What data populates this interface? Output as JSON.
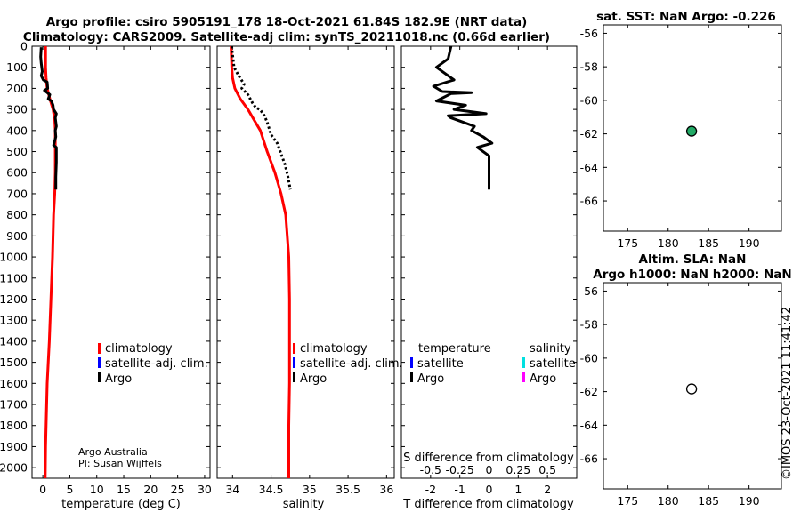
{
  "header": {
    "line1": "Argo profile: csiro 5905191_178 18-Oct-2021 61.84S 182.9E (NRT data)",
    "line2": "Climatology: CARS2009. Satellite-adj clim: synTS_20211018.nc (0.66d earlier)"
  },
  "depth_ticks": [
    "0",
    "100",
    "200",
    "300",
    "400",
    "500",
    "600",
    "700",
    "800",
    "900",
    "1000",
    "1100",
    "1200",
    "1300",
    "1400",
    "1500",
    "1600",
    "1700",
    "1800",
    "1900",
    "2000"
  ],
  "colors": {
    "climatology": "#ff0000",
    "satellite": "#0000ff",
    "argo": "#000000",
    "sat_salinity": "#00e0e0",
    "argo_salinity": "#ff00ff",
    "marker_fill": "#22aa66",
    "zero_line": "#555555"
  },
  "chart_data": [
    {
      "type": "line",
      "id": "temperature",
      "xlabel": "temperature (deg C)",
      "ylabel": "depth",
      "xlim": [
        -2,
        31
      ],
      "ylim": [
        2050,
        0
      ],
      "xticks": [
        0,
        5,
        10,
        15,
        20,
        25,
        30
      ],
      "xtick_labels": [
        "0",
        "5",
        "10",
        "15",
        "20",
        "25",
        "30"
      ],
      "legend": [
        "climatology",
        "satellite-adj. clim.",
        "Argo"
      ],
      "footer_text": [
        "Argo Australia",
        "PI: Susan Wijffels"
      ],
      "series": [
        {
          "name": "climatology",
          "color": "#ff0000",
          "x": [
            0.5,
            0.5,
            0.6,
            0.8,
            1.3,
            1.9,
            2.2,
            2.3,
            2.3,
            2.3,
            2.2,
            2.0,
            1.8,
            1.5,
            1.2,
            1.0,
            0.8,
            0.7,
            0.6,
            0.5,
            0.45
          ],
          "depth": [
            0,
            100,
            150,
            200,
            250,
            300,
            350,
            400,
            500,
            600,
            700,
            800,
            1000,
            1200,
            1400,
            1500,
            1600,
            1700,
            1800,
            1900,
            2050
          ]
        },
        {
          "name": "Argo",
          "color": "#000000",
          "x": [
            -0.3,
            -0.4,
            -0.3,
            -0.2,
            -0.1,
            -0.3,
            0.1,
            0.8,
            0.9,
            0.3,
            1.3,
            1.0,
            1.6,
            1.9,
            2.0,
            2.5,
            2.3,
            2.5,
            2.3,
            2.4,
            2.0,
            2.5,
            2.5,
            2.4,
            2.4
          ],
          "depth": [
            5,
            50,
            80,
            100,
            120,
            140,
            160,
            170,
            200,
            210,
            230,
            250,
            260,
            280,
            300,
            320,
            340,
            380,
            400,
            430,
            470,
            480,
            550,
            620,
            680
          ]
        }
      ]
    },
    {
      "type": "line",
      "id": "salinity",
      "xlabel": "salinity",
      "ylabel": "depth",
      "xlim": [
        33.8,
        36.1
      ],
      "ylim": [
        2050,
        0
      ],
      "xticks": [
        34,
        34.5,
        35,
        35.5,
        36
      ],
      "xtick_labels": [
        "34",
        "34.5",
        "35",
        "35.5",
        "36"
      ],
      "legend": [
        "climatology",
        "satellite-adj. clim.",
        "Argo"
      ],
      "series": [
        {
          "name": "climatology",
          "color": "#ff0000",
          "x": [
            33.98,
            33.99,
            34.0,
            34.03,
            34.1,
            34.2,
            34.28,
            34.36,
            34.45,
            34.55,
            34.63,
            34.69,
            34.73,
            34.74,
            34.74,
            34.74,
            34.73,
            34.73
          ],
          "depth": [
            0,
            100,
            150,
            200,
            250,
            300,
            350,
            400,
            500,
            600,
            700,
            800,
            1000,
            1200,
            1400,
            1600,
            1800,
            2050
          ]
        },
        {
          "name": "Argo",
          "color": "#000000",
          "x": [
            33.99,
            34.0,
            34.02,
            34.08,
            34.15,
            34.12,
            34.2,
            34.23,
            34.26,
            34.3,
            34.35,
            34.4,
            34.45,
            34.5,
            34.58,
            34.62,
            34.68,
            34.72,
            34.75
          ],
          "depth": [
            0,
            40,
            100,
            140,
            180,
            200,
            230,
            250,
            270,
            290,
            300,
            320,
            360,
            420,
            460,
            500,
            560,
            620,
            680
          ]
        }
      ]
    },
    {
      "type": "line",
      "id": "difference",
      "xlabel": "T difference from climatology",
      "top_axis_label": "S difference from climatology",
      "ylabel": "depth",
      "xlim": [
        -3,
        3
      ],
      "ylim": [
        2050,
        0
      ],
      "xticks": [
        -2,
        -1,
        0,
        1,
        2
      ],
      "xtick_labels": [
        "-2",
        "-1",
        "0",
        "1",
        "2"
      ],
      "s_tick_labels": [
        "-0.5",
        "-0.25",
        "0",
        "0.25",
        "0.5"
      ],
      "legend_headers": [
        "temperature",
        "salinity"
      ],
      "legend_temperature": [
        "satellite",
        "Argo"
      ],
      "legend_salinity": [
        "satellite",
        "Argo"
      ],
      "series": [
        {
          "name": "Argo T difference",
          "color": "#000000",
          "x": [
            -1.3,
            -1.4,
            -1.8,
            -1.5,
            -1.2,
            -1.9,
            -1.6,
            -0.6,
            -1.3,
            -1.8,
            -0.8,
            -1.2,
            -0.1,
            -1.4,
            -1.3,
            -0.9,
            -0.5,
            -0.6,
            -0.2,
            0.1,
            -0.4,
            0.0,
            0.0,
            0.0
          ],
          "depth": [
            0,
            60,
            100,
            130,
            160,
            190,
            215,
            220,
            225,
            260,
            280,
            300,
            320,
            330,
            340,
            360,
            380,
            400,
            430,
            460,
            480,
            520,
            600,
            680
          ]
        }
      ]
    },
    {
      "type": "scatter",
      "id": "sst_map",
      "title": "sat. SST: NaN Argo: -0.226",
      "xlim": [
        172,
        194
      ],
      "ylim": [
        -67.8,
        -55.5
      ],
      "xticks": [
        175,
        180,
        185,
        190
      ],
      "xtick_labels": [
        "175",
        "180",
        "185",
        "190"
      ],
      "yticks": [
        -56,
        -58,
        -60,
        -62,
        -64,
        -66
      ],
      "ytick_labels": [
        "-56",
        "-58",
        "-60",
        "-62",
        "-64",
        "-66"
      ],
      "points": [
        {
          "lon": 182.9,
          "lat": -61.84,
          "filled": true
        }
      ]
    },
    {
      "type": "scatter",
      "id": "sla_map",
      "title_line1": "Altim. SLA: NaN",
      "title_line2": "Argo h1000: NaN h2000: NaN",
      "xlim": [
        172,
        194
      ],
      "ylim": [
        -67.8,
        -55.5
      ],
      "xticks": [
        175,
        180,
        185,
        190
      ],
      "xtick_labels": [
        "175",
        "180",
        "185",
        "190"
      ],
      "yticks": [
        -56,
        -58,
        -60,
        -62,
        -64,
        -66
      ],
      "ytick_labels": [
        "-56",
        "-58",
        "-60",
        "-62",
        "-64",
        "-66"
      ],
      "points": [
        {
          "lon": 182.9,
          "lat": -61.84,
          "filled": false
        }
      ]
    }
  ],
  "side_stamp": "©IMOS 23-Oct-2021 11:41:42"
}
